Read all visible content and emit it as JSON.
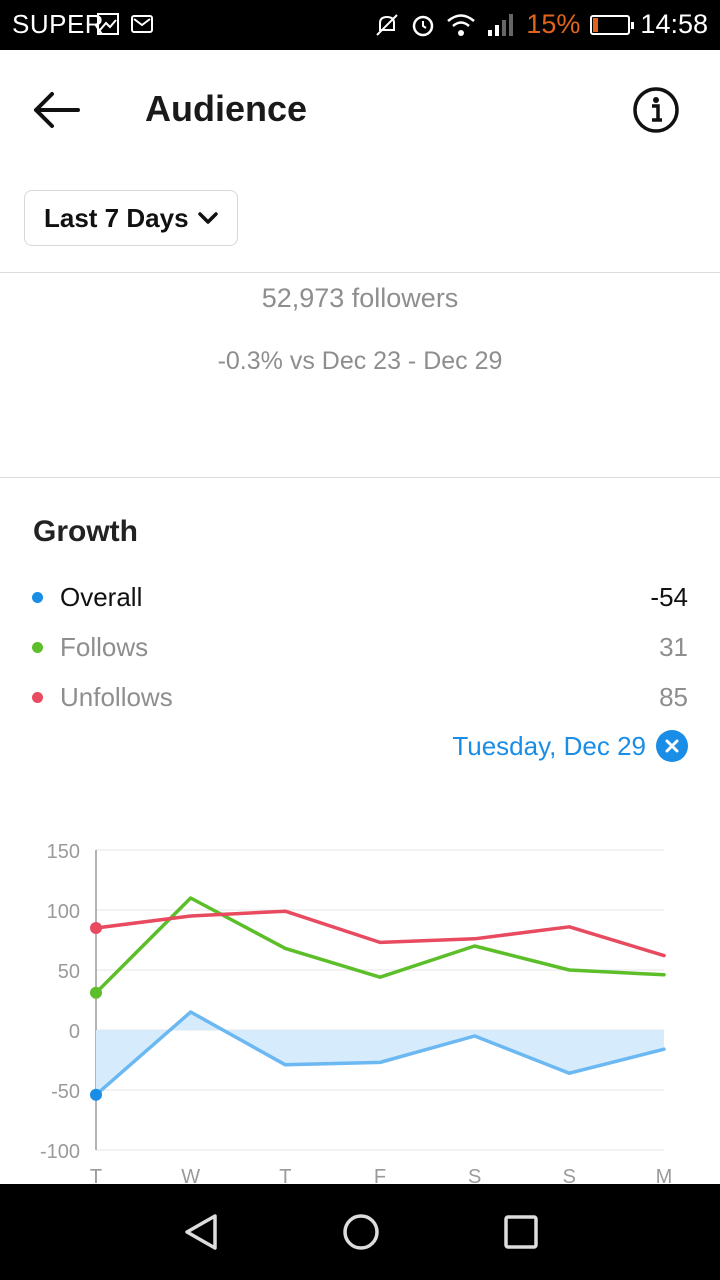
{
  "status_bar": {
    "carrier": "SUPER",
    "battery_percent": "15%",
    "time": "14:58",
    "icons": [
      "image-icon",
      "gmail-icon",
      "mute-icon",
      "alarm-icon",
      "wifi-icon",
      "signal-icon",
      "battery-icon"
    ]
  },
  "header": {
    "title": "Audience",
    "back_icon": "back-arrow-icon",
    "info_icon": "info-icon"
  },
  "range_selector": {
    "label": "Last 7 Days",
    "icon": "chevron-down-icon"
  },
  "summary": {
    "followers": "52,973 followers",
    "comparison": "-0.3% vs Dec 23 - Dec 29"
  },
  "growth": {
    "title": "Growth",
    "legend": [
      {
        "name": "Overall",
        "value": "-54",
        "color": "#1a8de6"
      },
      {
        "name": "Follows",
        "value": "31",
        "color": "#5cbf2a"
      },
      {
        "name": "Unfollows",
        "value": "85",
        "color": "#e84a5f"
      }
    ],
    "selected_date": "Tuesday, Dec 29",
    "clear_icon": "close-icon"
  },
  "chart_data": {
    "type": "line",
    "categories": [
      "T",
      "W",
      "T",
      "F",
      "S",
      "S",
      "M"
    ],
    "ylim": [
      -100,
      150
    ],
    "yticks": [
      150,
      100,
      50,
      0,
      -50,
      -100
    ],
    "grid": true,
    "series": [
      {
        "name": "Overall",
        "color": "#6cb8f2",
        "fill": "#d6ecfc",
        "values": [
          -54,
          15,
          -29,
          -27,
          -5,
          -36,
          -16
        ]
      },
      {
        "name": "Follows",
        "color": "#5cbf2a",
        "values": [
          31,
          110,
          68,
          44,
          70,
          50,
          46
        ]
      },
      {
        "name": "Unfollows",
        "color": "#e84a5f",
        "values": [
          85,
          95,
          99,
          73,
          76,
          86,
          62
        ]
      }
    ],
    "selected_index": 0
  },
  "nav_bar": {
    "icons": [
      "back-triangle-icon",
      "home-circle-icon",
      "recents-square-icon"
    ]
  }
}
